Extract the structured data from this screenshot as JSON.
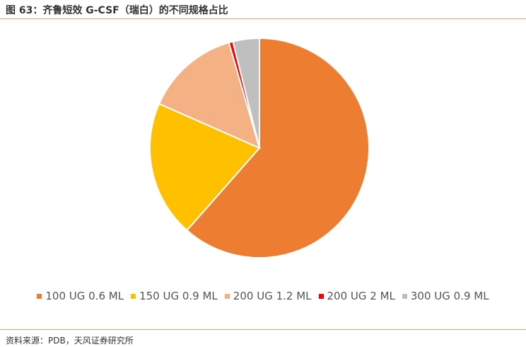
{
  "chart_data": {
    "type": "pie",
    "title": "图 63：齐鲁短效 G-CSF（瑞白）的不同规格占比",
    "categories": [
      "100 UG 0.6 ML",
      "150 UG 0.9 ML",
      "200 UG 1.2 ML",
      "200 UG 2 ML",
      "300 UG 0.9 ML"
    ],
    "values": [
      61.5,
      20.1,
      13.9,
      0.6,
      3.9
    ],
    "colors": [
      "#ED7D31",
      "#FFC000",
      "#F4B183",
      "#FF0000",
      "#BFBFBF"
    ],
    "legend": "bottom",
    "source": "资料来源：PDB，天风证券研究所"
  }
}
